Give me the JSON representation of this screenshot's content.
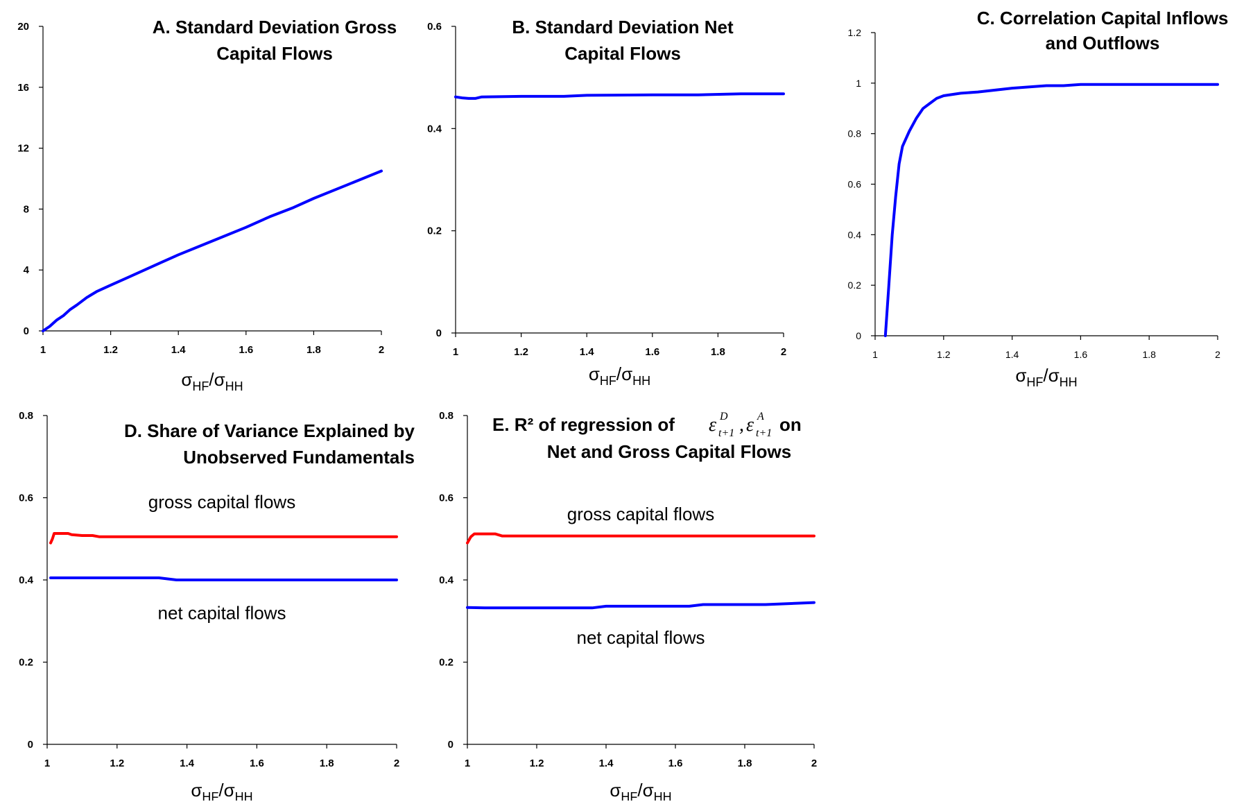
{
  "chart_data": [
    {
      "id": "A",
      "type": "line",
      "title": [
        "A.  Standard Deviation Gross",
        "Capital Flows"
      ],
      "xlabel": {
        "main": "σ",
        "sub1": "HF",
        "mid": "/σ",
        "sub2": "HH"
      },
      "xlim": [
        1,
        2
      ],
      "ylim": [
        0,
        20
      ],
      "xticks": [
        "1",
        "1.2",
        "1.4",
        "1.6",
        "1.8",
        "2"
      ],
      "yticks": [
        "0",
        "4",
        "8",
        "12",
        "16",
        "20"
      ],
      "series": [
        {
          "color": "#0000ff",
          "x": [
            1.0,
            1.02,
            1.04,
            1.06,
            1.08,
            1.1,
            1.13,
            1.16,
            1.2,
            1.25,
            1.3,
            1.35,
            1.4,
            1.5,
            1.6,
            1.67,
            1.74,
            1.8,
            1.9,
            2.0
          ],
          "y": [
            0.0,
            0.3,
            0.7,
            1.0,
            1.4,
            1.7,
            2.2,
            2.6,
            3.0,
            3.5,
            4.0,
            4.5,
            5.0,
            5.9,
            6.8,
            7.5,
            8.1,
            8.7,
            9.6,
            10.5
          ]
        }
      ],
      "labels": []
    },
    {
      "id": "B",
      "type": "line",
      "title": [
        "B.  Standard Deviation Net",
        "Capital Flows"
      ],
      "xlabel": {
        "main": "σ",
        "sub1": "HF",
        "mid": "/σ",
        "sub2": "HH"
      },
      "xlim": [
        1,
        2
      ],
      "ylim": [
        0,
        0.6
      ],
      "xticks": [
        "1",
        "1.2",
        "1.4",
        "1.6",
        "1.8",
        "2"
      ],
      "yticks": [
        "0",
        "0.2",
        "0.4",
        "0.6"
      ],
      "series": [
        {
          "color": "#0000ff",
          "x": [
            1.0,
            1.02,
            1.04,
            1.06,
            1.08,
            1.2,
            1.33,
            1.4,
            1.6,
            1.74,
            1.87,
            2.0
          ],
          "y": [
            0.462,
            0.46,
            0.459,
            0.459,
            0.462,
            0.463,
            0.463,
            0.465,
            0.466,
            0.466,
            0.468,
            0.468
          ]
        }
      ],
      "labels": []
    },
    {
      "id": "C",
      "type": "line",
      "title": [
        "C.  Correlation Capital Inflows",
        "and Outflows"
      ],
      "xlabel": {
        "main": "σ",
        "sub1": "HF",
        "mid": "/σ",
        "sub2": "HH"
      },
      "xlim": [
        1,
        2
      ],
      "ylim": [
        0,
        1.2
      ],
      "xticks": [
        "1",
        "1.2",
        "1.4",
        "1.6",
        "1.8",
        "2"
      ],
      "yticks": [
        "0",
        "0.2",
        "0.4",
        "0.6",
        "0.8",
        "1",
        "1.2"
      ],
      "series": [
        {
          "color": "#0000ff",
          "x": [
            1.03,
            1.04,
            1.05,
            1.06,
            1.07,
            1.08,
            1.1,
            1.12,
            1.14,
            1.16,
            1.18,
            1.2,
            1.25,
            1.3,
            1.4,
            1.5,
            1.55,
            1.6,
            1.7,
            1.8,
            2.0
          ],
          "y": [
            0.0,
            0.2,
            0.4,
            0.55,
            0.68,
            0.75,
            0.81,
            0.86,
            0.9,
            0.92,
            0.94,
            0.95,
            0.96,
            0.965,
            0.98,
            0.99,
            0.99,
            0.995,
            0.995,
            0.995,
            0.995
          ]
        }
      ],
      "labels": []
    },
    {
      "id": "D",
      "type": "line",
      "title": [
        "D. Share of Variance Explained by",
        "Unobserved Fundamentals"
      ],
      "xlabel": {
        "main": "σ",
        "sub1": "HF",
        "mid": "/σ",
        "sub2": "HH"
      },
      "xlim": [
        1,
        2
      ],
      "ylim": [
        0,
        0.8
      ],
      "xticks": [
        "1",
        "1.2",
        "1.4",
        "1.6",
        "1.8",
        "2"
      ],
      "yticks": [
        "0",
        "0.2",
        "0.4",
        "0.6",
        "0.8"
      ],
      "series": [
        {
          "name": "gross capital flows",
          "color": "#ff0000",
          "x": [
            1.01,
            1.015,
            1.02,
            1.03,
            1.06,
            1.07,
            1.1,
            1.13,
            1.15,
            1.2,
            1.4,
            1.6,
            1.8,
            2.0
          ],
          "y": [
            0.49,
            0.5,
            0.513,
            0.513,
            0.513,
            0.51,
            0.508,
            0.508,
            0.505,
            0.505,
            0.505,
            0.505,
            0.505,
            0.505
          ]
        },
        {
          "name": "net capital flows",
          "color": "#0000ff",
          "x": [
            1.01,
            1.05,
            1.2,
            1.32,
            1.37,
            1.5,
            1.6,
            1.8,
            2.0
          ],
          "y": [
            0.405,
            0.405,
            0.405,
            0.405,
            0.4,
            0.4,
            0.4,
            0.4,
            0.4
          ]
        }
      ],
      "labels": [
        {
          "text": "gross capital flows",
          "x": 1.5,
          "y": 0.575
        },
        {
          "text": "net capital flows",
          "x": 1.5,
          "y": 0.305
        }
      ]
    },
    {
      "id": "E",
      "type": "line",
      "title": [
        "E. R² of regression of",
        "on",
        "Net and Gross Capital Flows"
      ],
      "xlabel": {
        "main": "σ",
        "sub1": "HF",
        "mid": "/σ",
        "sub2": "HH"
      },
      "xlim": [
        1,
        2
      ],
      "ylim": [
        0,
        0.8
      ],
      "xticks": [
        "1",
        "1.2",
        "1.4",
        "1.6",
        "1.8",
        "2"
      ],
      "yticks": [
        "0",
        "0.2",
        "0.4",
        "0.6",
        "0.8"
      ],
      "series": [
        {
          "name": "gross capital flows",
          "color": "#ff0000",
          "x": [
            1.0,
            1.01,
            1.02,
            1.04,
            1.08,
            1.1,
            1.2,
            1.4,
            1.6,
            1.8,
            2.0
          ],
          "y": [
            0.49,
            0.505,
            0.512,
            0.512,
            0.512,
            0.507,
            0.507,
            0.507,
            0.507,
            0.507,
            0.507
          ]
        },
        {
          "name": "net capital flows",
          "color": "#0000ff",
          "x": [
            1.0,
            1.05,
            1.2,
            1.36,
            1.4,
            1.64,
            1.68,
            1.86,
            2.0
          ],
          "y": [
            0.333,
            0.332,
            0.332,
            0.332,
            0.336,
            0.336,
            0.34,
            0.34,
            0.345
          ]
        }
      ],
      "labels": [
        {
          "text": "gross capital flows",
          "x": 1.5,
          "y": 0.545
        },
        {
          "text": "net capital flows",
          "x": 1.5,
          "y": 0.245
        }
      ],
      "math_label": {
        "sym": "ε",
        "sub": "t+1",
        "sup1": "D",
        "sup2": "A",
        "sep": ","
      }
    }
  ]
}
